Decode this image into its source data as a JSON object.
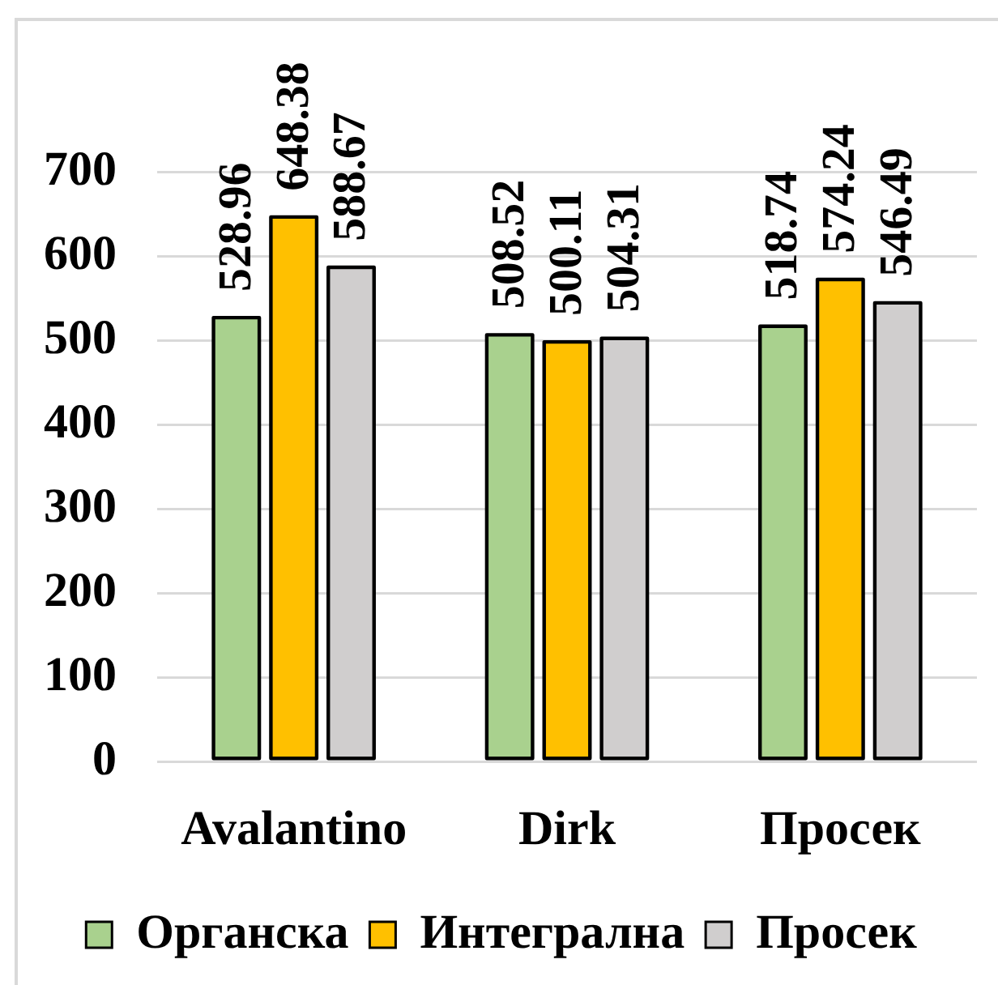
{
  "chart_data": {
    "type": "bar",
    "categories": [
      "Avalantino",
      "Dirk",
      "Просек"
    ],
    "series": [
      {
        "name": "Органска",
        "color": "#a9d18e",
        "values": [
          528.96,
          508.52,
          518.74
        ]
      },
      {
        "name": "Интегрална",
        "color": "#ffc000",
        "values": [
          648.38,
          500.11,
          574.24
        ]
      },
      {
        "name": "Просек",
        "color": "#d0cece",
        "values": [
          588.67,
          504.31,
          546.49
        ]
      }
    ],
    "ylim": [
      0,
      700
    ],
    "yticks": [
      0,
      100,
      200,
      300,
      400,
      500,
      600,
      700
    ],
    "grid": "y",
    "legend": "bottom",
    "data_labels": true
  }
}
